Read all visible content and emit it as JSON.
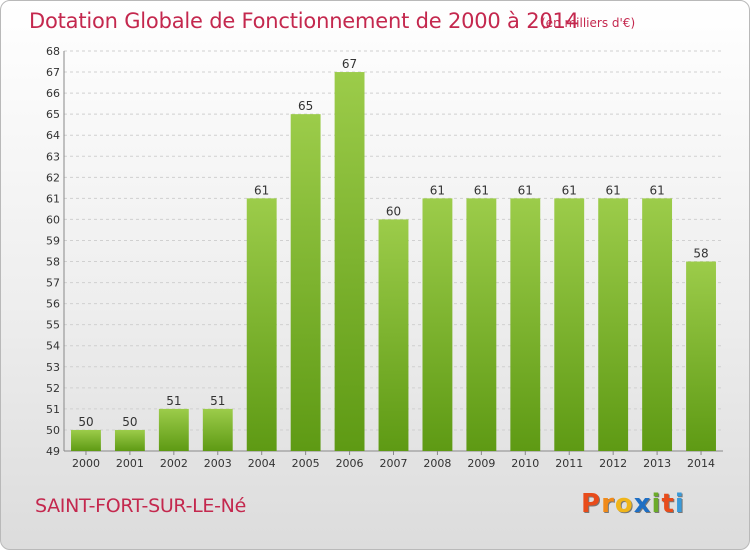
{
  "header": {
    "title": "Dotation Globale de Fonctionnement de 2000 à 2014",
    "unit": "(en milliers d'€)"
  },
  "footer": {
    "commune": "SAINT-FORT-SUR-LE-Né",
    "logo_letters": [
      "P",
      "r",
      "o",
      "x",
      "i",
      "t",
      "i"
    ],
    "logo_colors": [
      "#e84c1b",
      "#f08a1a",
      "#f0b51a",
      "#1f6fc4",
      "#6cab2a",
      "#e84c1b",
      "#3a9ad9"
    ]
  },
  "chart_data": {
    "type": "bar",
    "categories": [
      "2000",
      "2001",
      "2002",
      "2003",
      "2004",
      "2005",
      "2006",
      "2007",
      "2008",
      "2009",
      "2010",
      "2011",
      "2012",
      "2013",
      "2014"
    ],
    "values": [
      50,
      50,
      51,
      51,
      61,
      65,
      67,
      60,
      61,
      61,
      61,
      61,
      61,
      61,
      58
    ],
    "ylim": [
      49,
      68
    ],
    "yticks": [
      49,
      50,
      51,
      52,
      53,
      54,
      55,
      56,
      57,
      58,
      59,
      60,
      61,
      62,
      63,
      64,
      65,
      66,
      67,
      68
    ],
    "grid": true,
    "bar_color_top": "#9ccc4a",
    "bar_color_bottom": "#5e9a14",
    "title": "Dotation Globale de Fonctionnement de 2000 à 2014",
    "xlabel": "",
    "ylabel": ""
  }
}
